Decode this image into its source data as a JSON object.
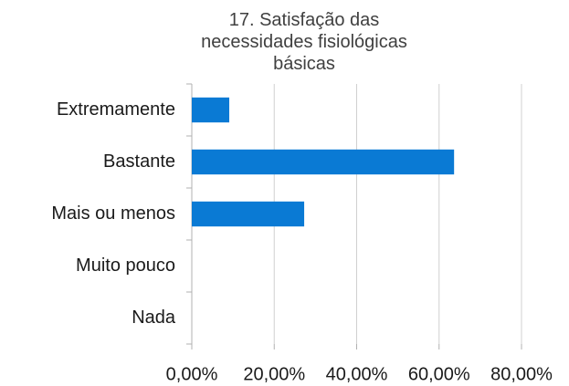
{
  "chart_data": {
    "type": "bar",
    "orientation": "horizontal",
    "title": "17. Satisfação das necessidades fisiológicas básicas",
    "categories": [
      "Extremamente",
      "Bastante",
      "Mais ou menos",
      "Muito pouco",
      "Nada"
    ],
    "values": [
      9.09,
      63.64,
      27.27,
      0,
      0
    ],
    "color": "#0a7ad4",
    "xlim": [
      0,
      80
    ],
    "xticks": [
      {
        "value": 0,
        "label": "0,00%"
      },
      {
        "value": 20,
        "label": "20,00%"
      },
      {
        "value": 40,
        "label": "40,00%"
      },
      {
        "value": 60,
        "label": "60,00%"
      },
      {
        "value": 80,
        "label": "80,00%"
      }
    ],
    "grid": true
  }
}
